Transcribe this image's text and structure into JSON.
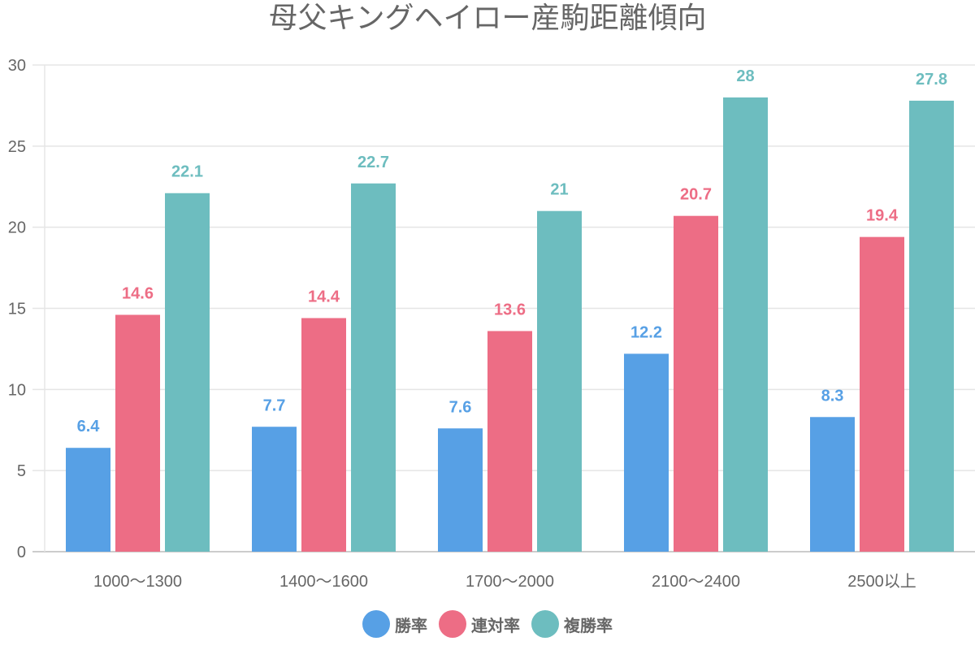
{
  "chart_data": {
    "type": "bar",
    "title": "母父キングヘイロー産駒距離傾向",
    "xlabel": "",
    "ylabel": "",
    "categories": [
      "1000〜1300",
      "1400〜1600",
      "1700〜2000",
      "2100〜2400",
      "2500以上"
    ],
    "series": [
      {
        "name": "勝率",
        "color": "#57a0e5",
        "values": [
          6.4,
          7.7,
          7.6,
          12.2,
          8.3
        ]
      },
      {
        "name": "連対率",
        "color": "#ed6d85",
        "values": [
          14.6,
          14.4,
          13.6,
          20.7,
          19.4
        ]
      },
      {
        "name": "複勝率",
        "color": "#6dbdbf",
        "values": [
          22.1,
          22.7,
          21,
          28,
          27.8
        ]
      }
    ],
    "ylim": [
      0,
      30
    ],
    "yticks": [
      0,
      5,
      10,
      15,
      20,
      25,
      30
    ],
    "grid": true,
    "legend_position": "bottom-center",
    "data_labels": true
  }
}
